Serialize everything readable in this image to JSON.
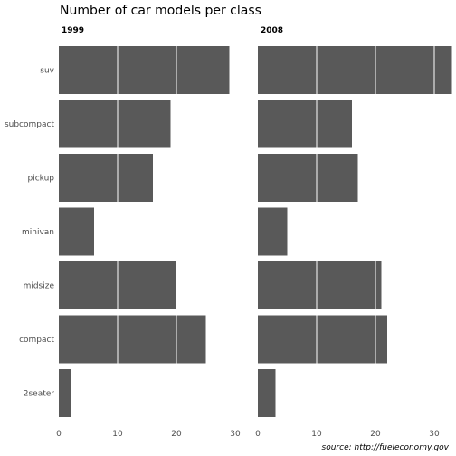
{
  "chart_data": {
    "type": "bar",
    "orientation": "horizontal",
    "title": "Number of car models per class",
    "caption": "source: http://fueleconomy.gov",
    "categories": [
      "suv",
      "subcompact",
      "pickup",
      "minivan",
      "midsize",
      "compact",
      "2seater"
    ],
    "xlim": [
      0,
      33
    ],
    "x_ticks": [
      "0",
      "10",
      "20",
      "30"
    ],
    "gridlines_inside_bars": true,
    "bar_color": "#595959",
    "grid_color": "#ffffff",
    "panels": [
      {
        "name": "1999",
        "values": [
          29,
          19,
          16,
          6,
          20,
          25,
          2
        ]
      },
      {
        "name": "2008",
        "values": [
          33,
          16,
          17,
          5,
          21,
          22,
          3
        ]
      }
    ]
  }
}
